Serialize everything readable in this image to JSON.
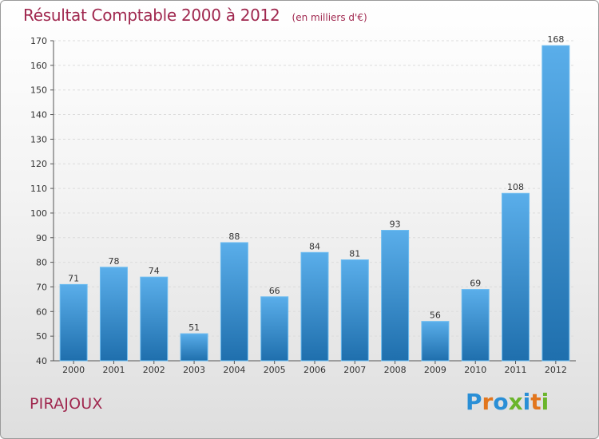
{
  "title": "Résultat Comptable 2000 à 2012",
  "subtitle": "(en milliers d'€)",
  "commune": "PIRAJOUX",
  "logo": {
    "text": "Proxiti",
    "letter_colors": [
      "#2a8fd6",
      "#e2761d",
      "#2a8fd6",
      "#6bb52c",
      "#2a8fd6",
      "#e2761d",
      "#6bb52c"
    ]
  },
  "colors": {
    "title": "#a0284f",
    "bar_top": "#5aaeea",
    "bar_bottom": "#1f6fad",
    "axis": "#555555",
    "grid": "#dcdcdc"
  },
  "chart_data": {
    "type": "bar",
    "categories": [
      "2000",
      "2001",
      "2002",
      "2003",
      "2004",
      "2005",
      "2006",
      "2007",
      "2008",
      "2009",
      "2010",
      "2011",
      "2012"
    ],
    "values": [
      71,
      78,
      74,
      51,
      88,
      66,
      84,
      81,
      93,
      56,
      69,
      108,
      168
    ],
    "ylim": [
      40,
      170
    ],
    "yticks": [
      40,
      50,
      60,
      70,
      80,
      90,
      100,
      110,
      120,
      130,
      140,
      150,
      160,
      170
    ],
    "grid": "horizontal-dashed",
    "legend": "none"
  }
}
